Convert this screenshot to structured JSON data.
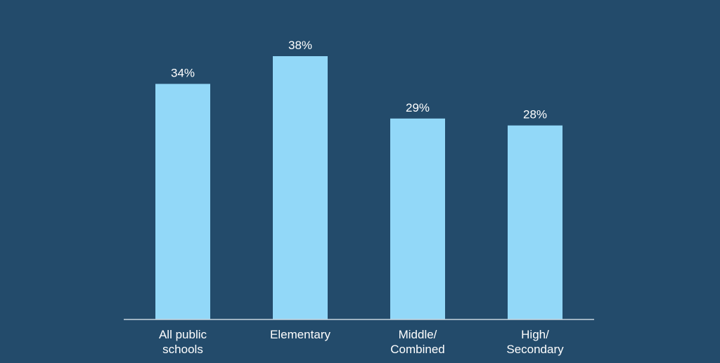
{
  "colors": {
    "background": "#234b6b",
    "bar": "#92d8f8",
    "text": "#ffffff",
    "axis": "#c8d4de"
  },
  "chart_data": {
    "type": "bar",
    "title": "",
    "xlabel": "",
    "ylabel": "",
    "categories": [
      [
        "All public",
        "schools"
      ],
      [
        "Elementary"
      ],
      [
        "Middle/",
        "Combined"
      ],
      [
        "High/",
        "Secondary"
      ]
    ],
    "values": [
      34,
      38,
      29,
      28
    ],
    "value_labels": [
      "34%",
      "38%",
      "29%",
      "28%"
    ],
    "ylim": [
      0,
      38
    ],
    "grid": false,
    "legend": "none"
  }
}
